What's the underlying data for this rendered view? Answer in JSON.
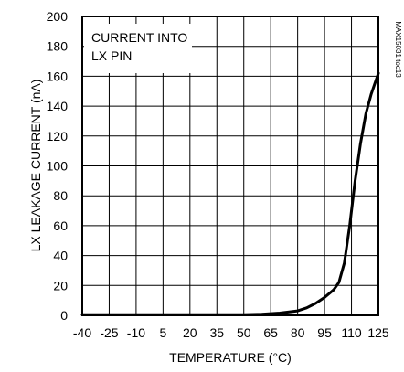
{
  "chart_data": {
    "type": "line",
    "title": "",
    "xlabel": "TEMPERATURE (°C)",
    "ylabel": "LX LEAKAGE CURRENT (nA)",
    "annotation": [
      "CURRENT INTO",
      "LX PIN"
    ],
    "side_label": "MAX15031 toc13",
    "xlim": [
      -40,
      125
    ],
    "ylim": [
      0,
      200
    ],
    "x_ticks": [
      -40,
      -25,
      -10,
      5,
      20,
      35,
      50,
      65,
      80,
      95,
      110,
      125
    ],
    "y_ticks": [
      0,
      20,
      40,
      60,
      80,
      100,
      120,
      140,
      160,
      180,
      200
    ],
    "grid": true,
    "series": [
      {
        "x": [
          -40,
          -25,
          -10,
          5,
          20,
          35,
          50,
          60,
          70,
          80,
          85,
          90,
          95,
          100,
          103,
          106,
          109,
          112,
          115,
          118,
          121,
          125
        ],
        "y": [
          0.5,
          0.5,
          0.5,
          0.5,
          0.5,
          0.5,
          0.5,
          0.8,
          1.5,
          3,
          5,
          8,
          12,
          17,
          22,
          35,
          60,
          90,
          115,
          135,
          148,
          162
        ]
      }
    ]
  }
}
